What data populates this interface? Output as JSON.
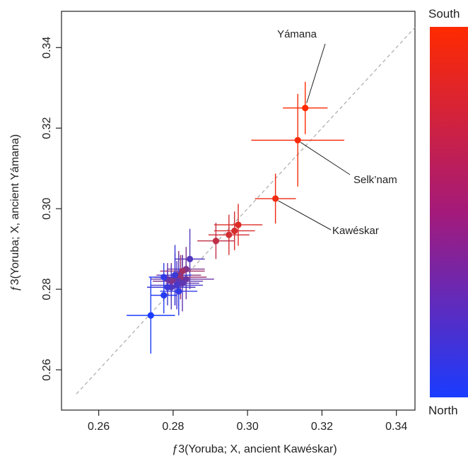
{
  "chart_data": {
    "type": "scatter",
    "title": "",
    "xlabel": "ƒ3(Yoruba; X, ancient Kawéskar)",
    "ylabel": "ƒ3(Yoruba; X, ancient Yámana)",
    "xlim": [
      0.25,
      0.345
    ],
    "ylim": [
      0.25,
      0.349
    ],
    "xticks": [
      "0.26",
      "0.28",
      "0.30",
      "0.32",
      "0.34"
    ],
    "yticks": [
      "0.26",
      "0.28",
      "0.30",
      "0.32",
      "0.34"
    ],
    "xtick_values": [
      0.26,
      0.28,
      0.3,
      0.32,
      0.34
    ],
    "ytick_values": [
      0.26,
      0.28,
      0.3,
      0.32,
      0.34
    ],
    "grid": false,
    "reference_line": {
      "style": "dashed",
      "color": "#aaaaaa",
      "from": [
        0.254,
        0.254
      ],
      "to": [
        0.345,
        0.345
      ]
    },
    "colorbar": {
      "top_label": "South",
      "bottom_label": "North",
      "top_color": "#ff2a00",
      "bottom_color": "#1a3cff"
    },
    "annotations": [
      {
        "text": "Yámana",
        "point": [
          0.3155,
          0.325
        ]
      },
      {
        "text": "Selk’nam",
        "point": [
          0.3135,
          0.317
        ]
      },
      {
        "text": "Kawéskar",
        "point": [
          0.3075,
          0.3025
        ]
      }
    ],
    "points": [
      {
        "x": 0.3155,
        "y": 0.325,
        "xerr": 0.006,
        "yerr": 0.0065,
        "south": 1.0
      },
      {
        "x": 0.3135,
        "y": 0.317,
        "xerr": 0.0125,
        "yerr": 0.0115,
        "south": 0.96
      },
      {
        "x": 0.3075,
        "y": 0.3025,
        "xerr": 0.0055,
        "yerr": 0.0062,
        "south": 0.93
      },
      {
        "x": 0.2975,
        "y": 0.296,
        "xerr": 0.0065,
        "yerr": 0.0052,
        "south": 0.85
      },
      {
        "x": 0.2965,
        "y": 0.2945,
        "xerr": 0.0055,
        "yerr": 0.0048,
        "south": 0.82
      },
      {
        "x": 0.295,
        "y": 0.2935,
        "xerr": 0.0055,
        "yerr": 0.005,
        "south": 0.8
      },
      {
        "x": 0.2915,
        "y": 0.292,
        "xerr": 0.005,
        "yerr": 0.0045,
        "south": 0.72
      },
      {
        "x": 0.2845,
        "y": 0.2875,
        "xerr": 0.004,
        "yerr": 0.0075,
        "south": 0.25
      },
      {
        "x": 0.2835,
        "y": 0.285,
        "xerr": 0.005,
        "yerr": 0.0055,
        "south": 0.45
      },
      {
        "x": 0.2825,
        "y": 0.2845,
        "xerr": 0.006,
        "yerr": 0.004,
        "south": 0.6
      },
      {
        "x": 0.2815,
        "y": 0.2835,
        "xerr": 0.006,
        "yerr": 0.006,
        "south": 0.5
      },
      {
        "x": 0.282,
        "y": 0.283,
        "xerr": 0.007,
        "yerr": 0.0055,
        "south": 0.55
      },
      {
        "x": 0.2805,
        "y": 0.2825,
        "xerr": 0.0055,
        "yerr": 0.0065,
        "south": 0.4
      },
      {
        "x": 0.2835,
        "y": 0.2825,
        "xerr": 0.0075,
        "yerr": 0.005,
        "south": 0.35
      },
      {
        "x": 0.2815,
        "y": 0.282,
        "xerr": 0.0065,
        "yerr": 0.0065,
        "south": 0.3
      },
      {
        "x": 0.2795,
        "y": 0.282,
        "xerr": 0.005,
        "yerr": 0.0045,
        "south": 0.45
      },
      {
        "x": 0.281,
        "y": 0.281,
        "xerr": 0.007,
        "yerr": 0.006,
        "south": 0.2
      },
      {
        "x": 0.2795,
        "y": 0.2805,
        "xerr": 0.0065,
        "yerr": 0.0055,
        "south": 0.25
      },
      {
        "x": 0.2785,
        "y": 0.2805,
        "xerr": 0.0055,
        "yerr": 0.0045,
        "south": 0.15
      },
      {
        "x": 0.2825,
        "y": 0.2815,
        "xerr": 0.0045,
        "yerr": 0.007,
        "south": 0.3
      },
      {
        "x": 0.2805,
        "y": 0.2835,
        "xerr": 0.0045,
        "yerr": 0.0075,
        "south": 0.15
      },
      {
        "x": 0.2785,
        "y": 0.2825,
        "xerr": 0.0045,
        "yerr": 0.004,
        "south": 0.35
      },
      {
        "x": 0.2775,
        "y": 0.283,
        "xerr": 0.004,
        "yerr": 0.0035,
        "south": 0.1
      },
      {
        "x": 0.2815,
        "y": 0.2795,
        "xerr": 0.005,
        "yerr": 0.006,
        "south": 0.1
      },
      {
        "x": 0.2775,
        "y": 0.2785,
        "xerr": 0.0035,
        "yerr": 0.0045,
        "south": 0.05
      },
      {
        "x": 0.274,
        "y": 0.2735,
        "xerr": 0.0065,
        "yerr": 0.0095,
        "south": 0.0
      }
    ]
  }
}
